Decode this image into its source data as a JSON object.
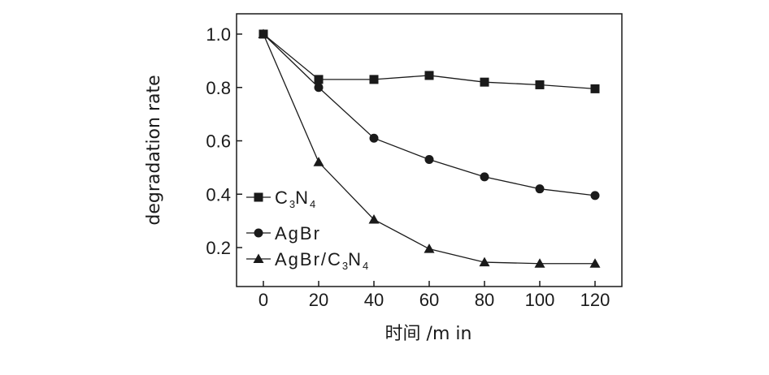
{
  "chart_data": {
    "type": "line",
    "title": "",
    "xlabel": "时间 /m in",
    "ylabel": "degradation rate",
    "x": [
      0,
      20,
      40,
      60,
      80,
      100,
      120
    ],
    "xlim": [
      -10,
      130
    ],
    "ylim": [
      0.05,
      1.1
    ],
    "x_ticks": [
      "0",
      "20",
      "40",
      "60",
      "80",
      "100",
      "120"
    ],
    "y_ticks": [
      "0.2",
      "0.4",
      "0.6",
      "0.8",
      "1.0"
    ],
    "grid": false,
    "legend_position": "bottom-left",
    "series": [
      {
        "name": "C3N4",
        "name_parts": [
          "C",
          "3",
          "N",
          "4"
        ],
        "marker": "square",
        "values": [
          1.0,
          0.83,
          0.83,
          0.845,
          0.82,
          0.81,
          0.795
        ]
      },
      {
        "name": "AgBr",
        "name_parts": [
          "AgBr"
        ],
        "marker": "circle",
        "values": [
          1.0,
          0.8,
          0.61,
          0.53,
          0.465,
          0.42,
          0.395
        ]
      },
      {
        "name": "AgBr/C3N4",
        "name_parts": [
          "AgBr/C",
          "3",
          "N",
          "4"
        ],
        "marker": "triangle",
        "values": [
          1.0,
          0.52,
          0.305,
          0.195,
          0.145,
          0.14,
          0.14
        ]
      }
    ]
  }
}
